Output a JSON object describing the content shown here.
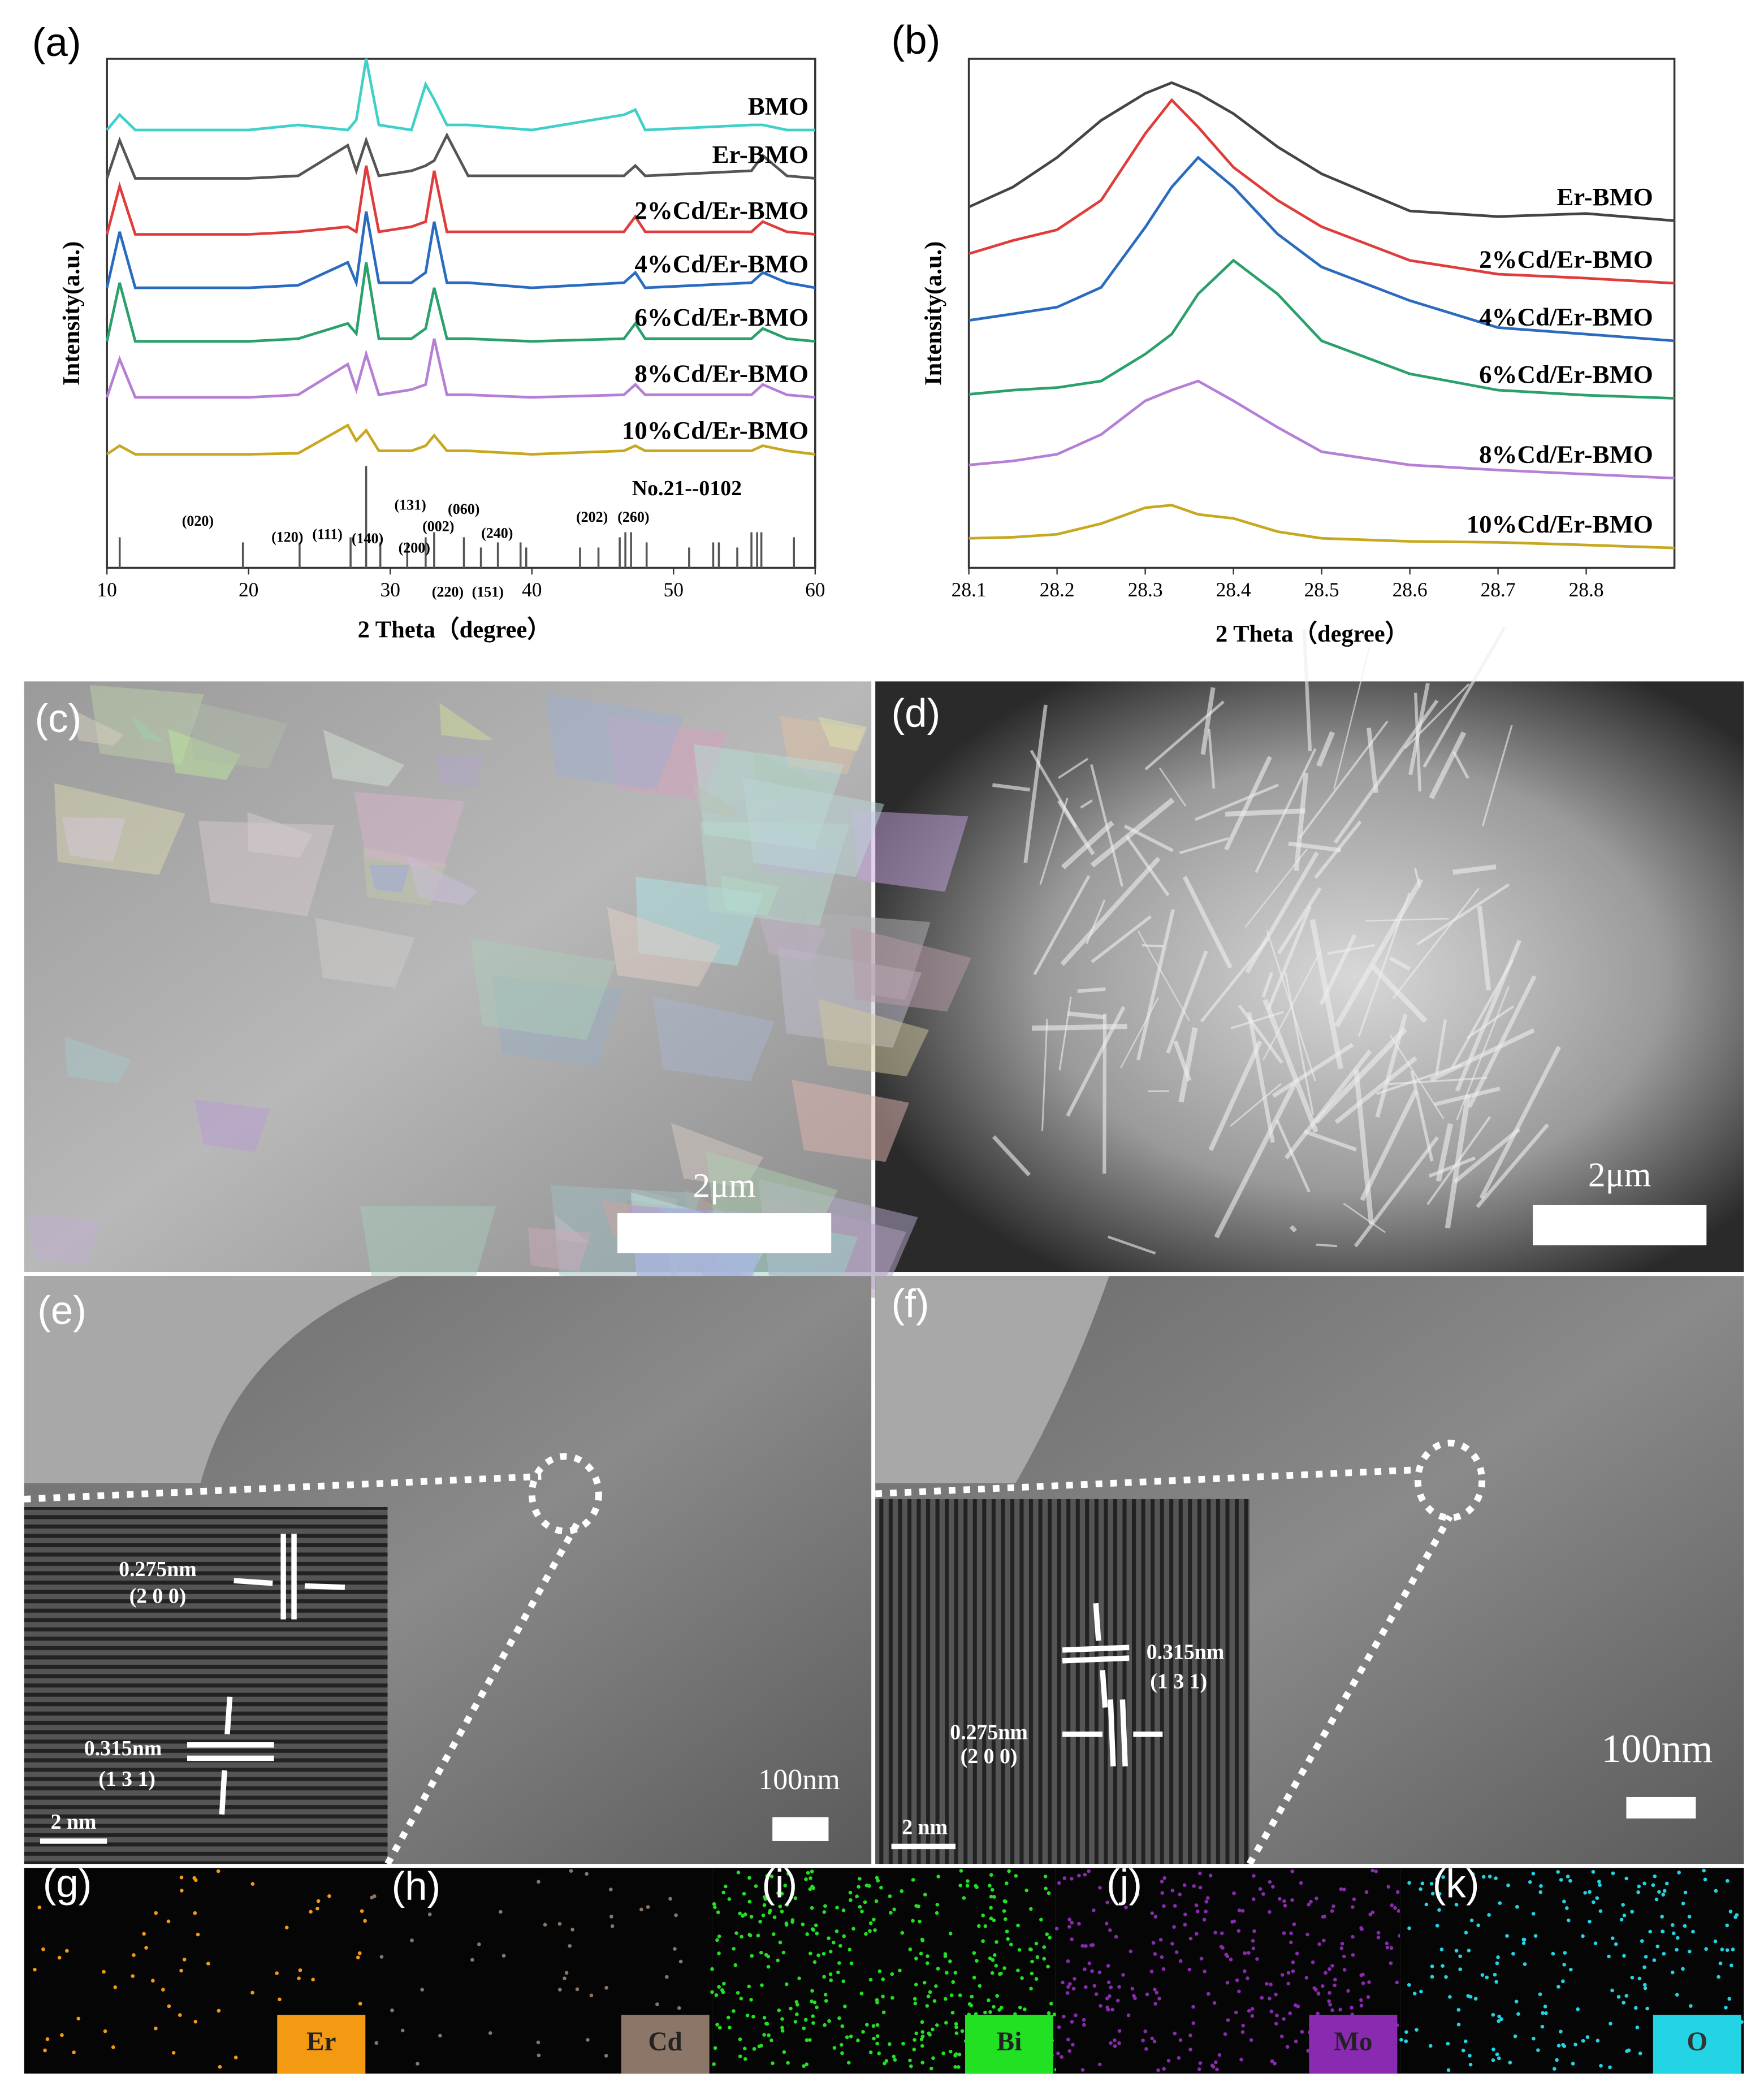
{
  "chart_data": [
    {
      "type": "line",
      "y_label": "Intensity(a.u.)",
      "x_label": "2 Theta（degree）",
      "xlim": [
        10,
        60
      ],
      "xticks": [
        10,
        20,
        30,
        40,
        50,
        60
      ],
      "ylim": [
        0,
        100
      ],
      "x": [
        10,
        10.9,
        12,
        20,
        23.5,
        27,
        27.6,
        28.3,
        29.2,
        31.5,
        32.5,
        33.1,
        34,
        35.5,
        40,
        46.5,
        47.3,
        48,
        55.5,
        56.3,
        58,
        60
      ],
      "series": [
        {
          "name": "BMO",
          "color": "#3fd0c8",
          "values": [
            86,
            89,
            86,
            86,
            87,
            86,
            88,
            100,
            87,
            86,
            95,
            92,
            87,
            87,
            86,
            89,
            90,
            86,
            87,
            87,
            86,
            86
          ]
        },
        {
          "name": "Er-BMO",
          "color": "#555555",
          "values": [
            76.5,
            84,
            76.5,
            76.5,
            77,
            83,
            78,
            84,
            77,
            78,
            79,
            80,
            85,
            77,
            77,
            77,
            79,
            77,
            78,
            81,
            77,
            76.5
          ]
        },
        {
          "name": "2%Cd/Er-BMO",
          "color": "#e03c3c",
          "values": [
            65.5,
            75,
            65.5,
            65.5,
            66,
            67,
            66,
            79,
            66,
            67,
            68,
            78,
            66,
            66,
            66,
            66,
            69,
            66,
            66,
            68,
            66,
            65.5
          ]
        },
        {
          "name": "4%Cd/Er-BMO",
          "color": "#2a6bc0",
          "values": [
            55,
            66,
            55,
            55,
            55.5,
            60,
            56,
            70,
            56,
            56,
            58,
            68,
            56,
            56,
            55,
            56,
            58,
            55,
            56,
            58,
            56,
            55
          ]
        },
        {
          "name": "6%Cd/Er-BMO",
          "color": "#2aa06a",
          "values": [
            44.5,
            56,
            44.5,
            44.5,
            45,
            48,
            46,
            60,
            45,
            45,
            47,
            55,
            45,
            45,
            44.5,
            45,
            48,
            45,
            45,
            47,
            45,
            44.5
          ]
        },
        {
          "name": "8%Cd/Er-BMO",
          "color": "#b67fd6",
          "values": [
            33.5,
            41,
            33.5,
            33.5,
            34,
            40,
            35,
            42,
            34,
            35,
            36,
            45,
            34,
            34,
            33.5,
            34,
            36,
            34,
            34,
            36,
            34,
            33.5
          ]
        },
        {
          "name": "10%Cd/Er-BMO",
          "color": "#c8a820",
          "values": [
            22.3,
            24,
            22.3,
            22.3,
            22.5,
            28,
            25,
            27,
            23,
            23,
            24,
            26,
            23,
            23,
            22.3,
            23,
            24,
            23,
            23,
            24,
            23,
            22.3
          ]
        }
      ],
      "reference": {
        "label": "No.21--0102",
        "color": "#555555",
        "x": [
          10.9,
          19.6,
          23.6,
          27.2,
          28.3,
          29.3,
          31.2,
          32.5,
          33.1,
          35.2,
          36.4,
          37.6,
          39.2,
          39.6,
          43.4,
          44.7,
          46.2,
          46.6,
          47,
          48.1,
          51.1,
          52.8,
          53.2,
          54.5,
          55.5,
          55.9,
          56.2,
          58.5
        ],
        "values": [
          6,
          5,
          5,
          6,
          20,
          5,
          5,
          6,
          7,
          6,
          4,
          5,
          5,
          4,
          4,
          4,
          6,
          7,
          7,
          5,
          4,
          5,
          5,
          4,
          7,
          7,
          7,
          6
        ]
      },
      "annotations": [
        "(020)",
        "(120)",
        "(111)",
        "(140)",
        "(131)",
        "(002)",
        "(060)",
        "(200)",
        "(220)",
        "(151)",
        "(240)",
        "(202)",
        "(260)"
      ]
    },
    {
      "type": "line",
      "y_label": "Intensity(a.u.)",
      "x_label": "2 Theta（degree）",
      "xlim": [
        28.1,
        28.9
      ],
      "xticks": [
        28.1,
        28.2,
        28.3,
        28.4,
        28.5,
        28.6,
        28.7,
        28.8
      ],
      "ylim": [
        0,
        100
      ],
      "x": [
        28.1,
        28.15,
        28.2,
        28.25,
        28.3,
        28.33,
        28.36,
        28.4,
        28.45,
        28.5,
        28.6,
        28.7,
        28.8,
        28.9
      ],
      "series": [
        {
          "name": "Er-BMO",
          "color": "#444444",
          "values": [
            70.9,
            74.8,
            80.6,
            87.9,
            93.2,
            95.3,
            93.2,
            89.2,
            82.7,
            77.4,
            70.1,
            69,
            69.6,
            68.2
          ]
        },
        {
          "name": "2%Cd/Er-BMO",
          "color": "#e03c3c",
          "values": [
            61.7,
            64.3,
            66.4,
            72.2,
            85.3,
            91.9,
            86.6,
            78.7,
            72.2,
            67,
            60.4,
            57.7,
            56.9,
            55.9
          ]
        },
        {
          "name": "4%Cd/Er-BMO",
          "color": "#2a6bc0",
          "values": [
            48.6,
            49.9,
            51.2,
            55.1,
            66.9,
            74.8,
            80.6,
            74.8,
            65.6,
            59.1,
            52.5,
            47.2,
            45.9,
            44.6
          ]
        },
        {
          "name": "6%Cd/Er-BMO",
          "color": "#2aa06a",
          "values": [
            34.1,
            34.9,
            35.4,
            36.7,
            42,
            45.9,
            53.8,
            60.4,
            53.8,
            44.6,
            38.1,
            34.9,
            33.9,
            33.3
          ]
        },
        {
          "name": "8%Cd/Er-BMO",
          "color": "#b67fd6",
          "values": [
            20.2,
            21,
            22.3,
            26.2,
            32.8,
            34.9,
            36.7,
            32.8,
            27.6,
            22.8,
            20.2,
            19.2,
            18.4,
            17.6
          ]
        },
        {
          "name": "10%Cd/Er-BMO",
          "color": "#c8a820",
          "values": [
            5.8,
            6,
            6.6,
            8.7,
            11.8,
            12.3,
            10.5,
            9.7,
            7.1,
            5.8,
            5.2,
            5,
            4.5,
            3.9
          ]
        }
      ]
    }
  ],
  "panel_labels": [
    "(a)",
    "(b)",
    "(c)",
    "(d)",
    "(e)",
    "(f)",
    "(g)",
    "(h)",
    "(i)",
    "(j)",
    "(k)"
  ],
  "sem": {
    "scale_bars": [
      "2μm",
      "2μm"
    ]
  },
  "tem": {
    "e": {
      "scale": "100nm",
      "inset_scale": "2 nm",
      "spacings": [
        {
          "d": "0.275nm",
          "plane": "(2 0 0)"
        },
        {
          "d": "0.315nm",
          "plane": "(1 3 1)"
        }
      ]
    },
    "f": {
      "scale": "100nm",
      "inset_scale": "2 nm",
      "spacings": [
        {
          "d": "0.315nm",
          "plane": "(1 3 1)"
        },
        {
          "d": "0.275nm",
          "plane": "(2 0 0)"
        }
      ]
    }
  },
  "eds": {
    "elements": [
      {
        "name": "Er",
        "color": "#f39a12"
      },
      {
        "name": "Cd",
        "color": "#8c7668"
      },
      {
        "name": "Bi",
        "color": "#22e022"
      },
      {
        "name": "Mo",
        "color": "#8a2ab0"
      },
      {
        "name": "O",
        "color": "#22d4e4"
      }
    ]
  }
}
